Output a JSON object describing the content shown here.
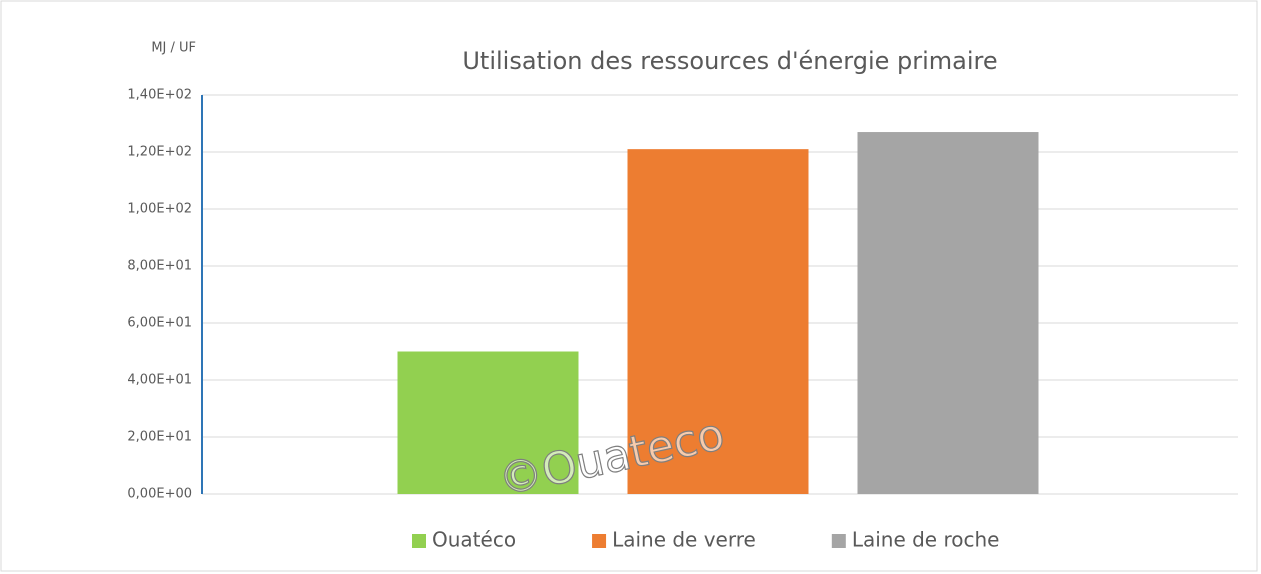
{
  "chart_data": {
    "type": "bar",
    "title": "Utilisation des ressources d'énergie primaire",
    "y_axis_label": "MJ / UF",
    "watermark": "©Ouateco",
    "categories": [
      null
    ],
    "series": [
      {
        "name": "Ouatéco",
        "color": "#92d050",
        "values": [
          50
        ]
      },
      {
        "name": "Laine de verre",
        "color": "#ed7d31",
        "values": [
          121
        ]
      },
      {
        "name": "Laine de roche",
        "color": "#a5a5a5",
        "values": [
          127
        ]
      }
    ],
    "ylim": [
      0,
      140
    ],
    "yticks": [
      {
        "value": 0,
        "label": "0,00E+00"
      },
      {
        "value": 20,
        "label": "2,00E+01"
      },
      {
        "value": 40,
        "label": "4,00E+01"
      },
      {
        "value": 60,
        "label": "6,00E+01"
      },
      {
        "value": 80,
        "label": "8,00E+01"
      },
      {
        "value": 100,
        "label": "1,00E+02"
      },
      {
        "value": 120,
        "label": "1,20E+02"
      },
      {
        "value": 140,
        "label": "1,40E+02"
      }
    ],
    "grid": true,
    "legend": "bottom"
  }
}
